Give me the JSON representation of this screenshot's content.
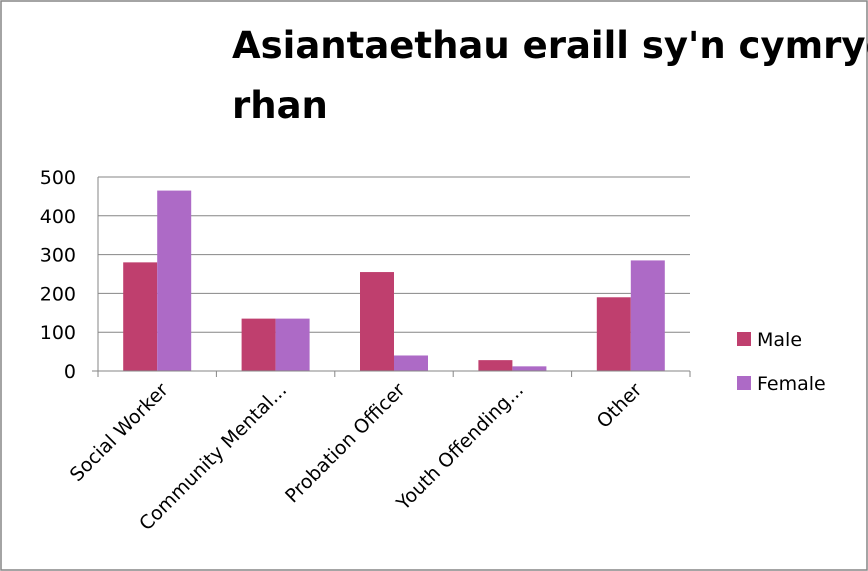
{
  "chart_data": {
    "type": "bar",
    "title": "Asiantaethau eraill sy'n cymryd rhan",
    "title_lines": [
      "Asiantaethau eraill sy'n cymryd",
      "rhan"
    ],
    "categories": [
      "Social Worker",
      "Community Mental...",
      "Probation Officer",
      "Youth Offending...",
      "Other"
    ],
    "series": [
      {
        "name": "Male",
        "color": "#bf3f6e",
        "values": [
          280,
          135,
          255,
          28,
          190
        ]
      },
      {
        "name": "Female",
        "color": "#ad6ac6",
        "values": [
          465,
          135,
          40,
          12,
          285
        ]
      }
    ],
    "ylim": [
      0,
      500
    ],
    "yticks": [
      "0",
      "100",
      "200",
      "300",
      "400",
      "500"
    ],
    "xlabel": "",
    "ylabel": "",
    "grid": true,
    "legend": "right",
    "colors": {
      "gridline": "#868686",
      "axis": "#868686",
      "border": "#868686"
    }
  }
}
